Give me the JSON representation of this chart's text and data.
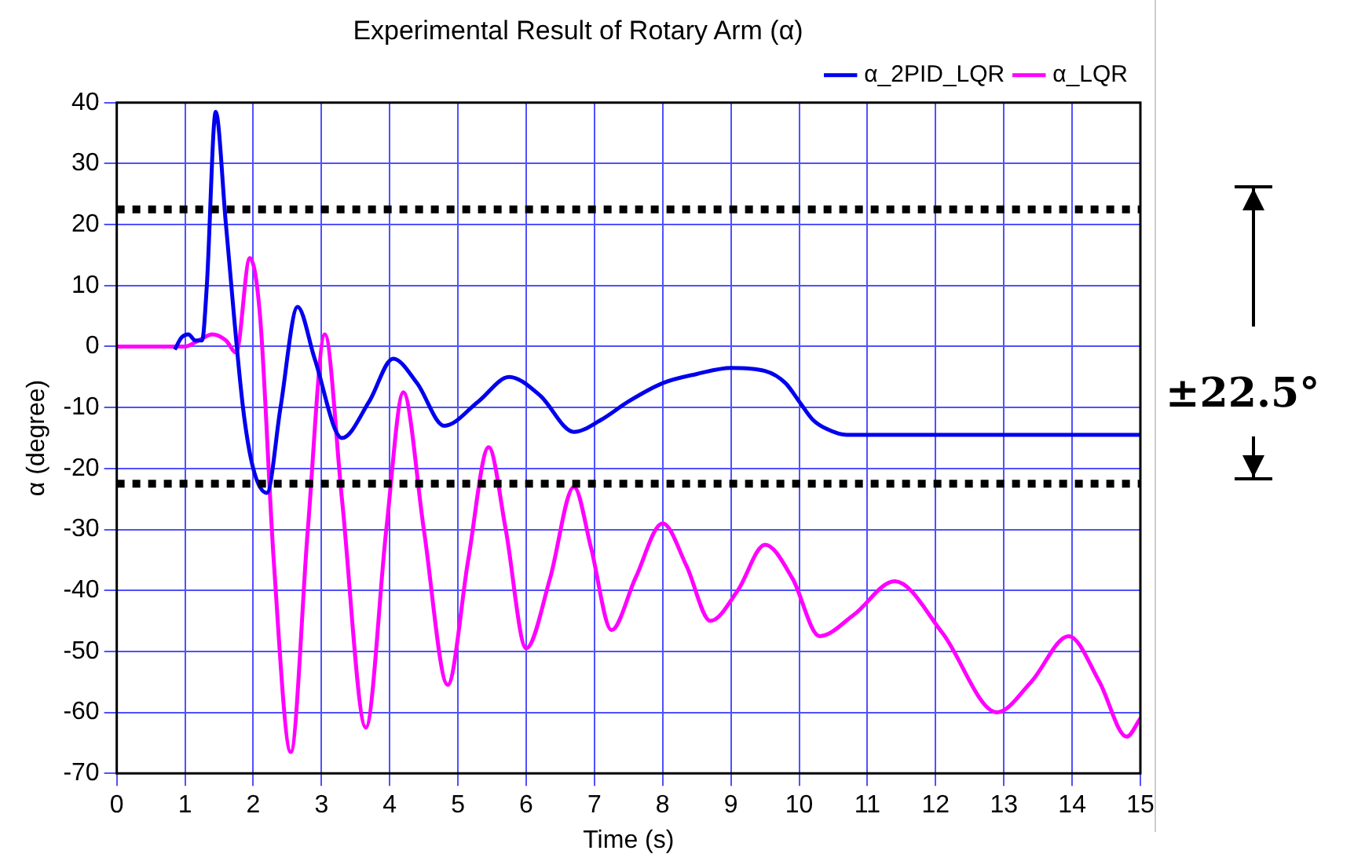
{
  "chart_data": {
    "type": "line",
    "title": "Experimental Result of Rotary Arm (α)",
    "xlabel": "Time (s)",
    "ylabel": "α (degree)",
    "xlim": [
      0,
      15
    ],
    "xticks": [
      0,
      1,
      2,
      3,
      4,
      5,
      6,
      7,
      8,
      9,
      10,
      11,
      12,
      13,
      14,
      15
    ],
    "ylim": [
      -70,
      40
    ],
    "yticks": [
      -70,
      -60,
      -50,
      -40,
      -30,
      -20,
      -10,
      0,
      10,
      20,
      30,
      40
    ],
    "grid": true,
    "legend": "top right",
    "marker": "none",
    "line_style": "solid",
    "series": [
      {
        "name": "α_2PID_LQR",
        "color": "#0000ee",
        "x": [
          0.85,
          0.95,
          1.05,
          1.15,
          1.25,
          1.32,
          1.45,
          1.6,
          1.85,
          2.0,
          2.2,
          2.4,
          2.65,
          2.9,
          3.3,
          3.7,
          4.05,
          4.4,
          4.8,
          5.3,
          5.75,
          6.2,
          6.7,
          7.1,
          7.5,
          8.0,
          8.5,
          9.0,
          9.5,
          9.8,
          10.0,
          10.2,
          10.4,
          10.7,
          11.0,
          12.0,
          13.0,
          14.0,
          15.0
        ],
        "values": [
          -0.5,
          1.5,
          2,
          1,
          1,
          10,
          38.5,
          20,
          -10,
          -20,
          -24,
          -10,
          6.5,
          -2,
          -15,
          -9,
          -2,
          -6,
          -13,
          -9,
          -5,
          -8,
          -14,
          -12,
          -9,
          -6,
          -4.5,
          -3.5,
          -4,
          -6,
          -9,
          -12,
          -13.5,
          -14.5,
          -14.5,
          -14.5,
          -14.5,
          -14.5,
          -14.5
        ]
      },
      {
        "name": "α_LQR",
        "color": "#ff00ff",
        "x": [
          0,
          0.5,
          1.0,
          1.2,
          1.4,
          1.6,
          1.75,
          1.95,
          2.1,
          2.3,
          2.55,
          2.8,
          3.05,
          3.3,
          3.65,
          3.95,
          4.2,
          4.5,
          4.85,
          5.15,
          5.45,
          5.7,
          6.0,
          6.35,
          6.7,
          6.95,
          7.25,
          7.6,
          8.0,
          8.35,
          8.7,
          9.1,
          9.5,
          9.9,
          10.3,
          10.8,
          11.4,
          12.1,
          12.9,
          13.4,
          13.95,
          14.4,
          14.8,
          15.0
        ],
        "values": [
          0,
          0,
          0,
          1,
          2,
          1,
          -1,
          14.5,
          5,
          -35,
          -66.5,
          -30,
          2,
          -25,
          -62.5,
          -30,
          -7.5,
          -30,
          -55.5,
          -35,
          -16.5,
          -30,
          -49.5,
          -38,
          -23,
          -33,
          -46.5,
          -38,
          -29,
          -36,
          -45,
          -40,
          -32.5,
          -38,
          -47.5,
          -44,
          -38.5,
          -47,
          -60,
          -55,
          -47.5,
          -55,
          -64,
          -61
        ]
      }
    ],
    "ref_lines": [
      {
        "axis": "y",
        "value": 22.5,
        "color": "#000000",
        "line_style": "dotted"
      },
      {
        "axis": "y",
        "value": -22.5,
        "color": "#000000",
        "line_style": "dotted"
      }
    ],
    "annotations": [
      "±22.5°"
    ]
  }
}
